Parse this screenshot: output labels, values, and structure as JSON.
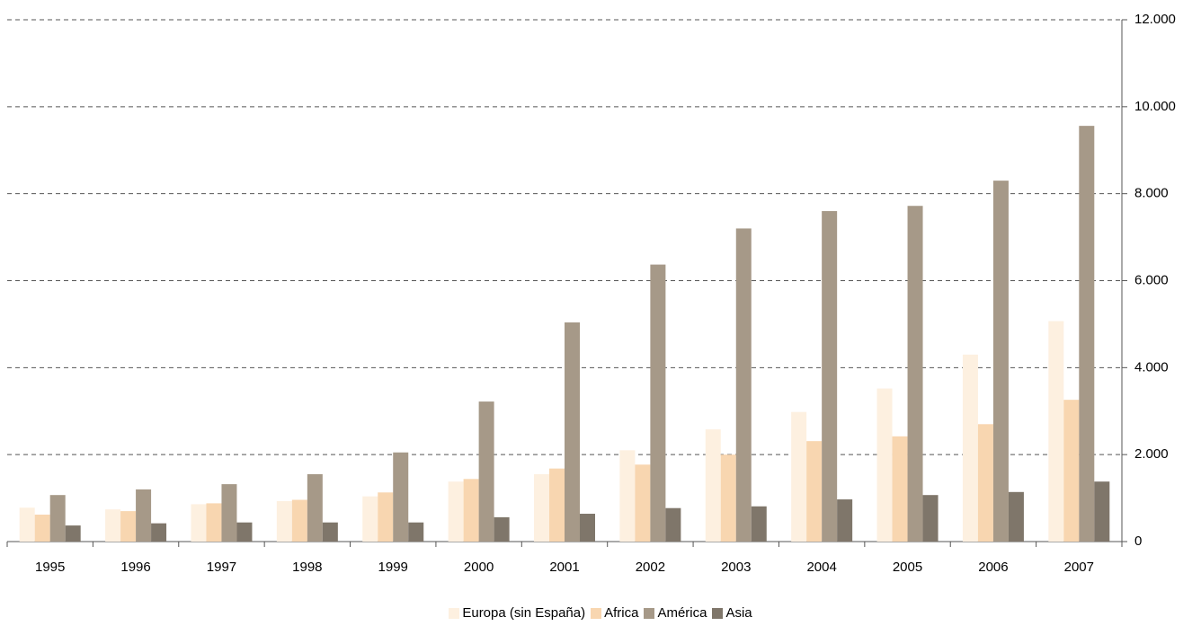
{
  "chart_data": {
    "type": "bar",
    "categories": [
      "1995",
      "1996",
      "1997",
      "1998",
      "1999",
      "2000",
      "2001",
      "2002",
      "2003",
      "2004",
      "2005",
      "2006",
      "2007"
    ],
    "series": [
      {
        "name": "Europa (sin España)",
        "color": "#fdf0e0",
        "values": [
          780,
          740,
          860,
          930,
          1040,
          1380,
          1550,
          2100,
          2580,
          2980,
          3520,
          4300,
          5070
        ]
      },
      {
        "name": "Africa",
        "color": "#f8d6b0",
        "values": [
          620,
          700,
          880,
          960,
          1130,
          1440,
          1680,
          1770,
          2000,
          2310,
          2420,
          2700,
          3260
        ]
      },
      {
        "name": "América",
        "color": "#a69988",
        "values": [
          1070,
          1200,
          1320,
          1550,
          2050,
          3220,
          5040,
          6370,
          7200,
          7600,
          7720,
          8300,
          9560
        ]
      },
      {
        "name": "Asia",
        "color": "#7f766a",
        "values": [
          370,
          420,
          440,
          440,
          440,
          560,
          640,
          770,
          810,
          970,
          1070,
          1140,
          1380
        ]
      }
    ],
    "ylim": [
      0,
      12000
    ],
    "yticks": [
      0,
      {
        "value": 2000,
        "label": "2.000"
      },
      {
        "value": 4000,
        "label": "4.000"
      },
      {
        "value": 6000,
        "label": "6.000"
      },
      {
        "value": 8000,
        "label": "8.000"
      },
      {
        "value": 10000,
        "label": "10.000"
      },
      {
        "value": 12000,
        "label": "12.000"
      }
    ],
    "grid": true
  }
}
